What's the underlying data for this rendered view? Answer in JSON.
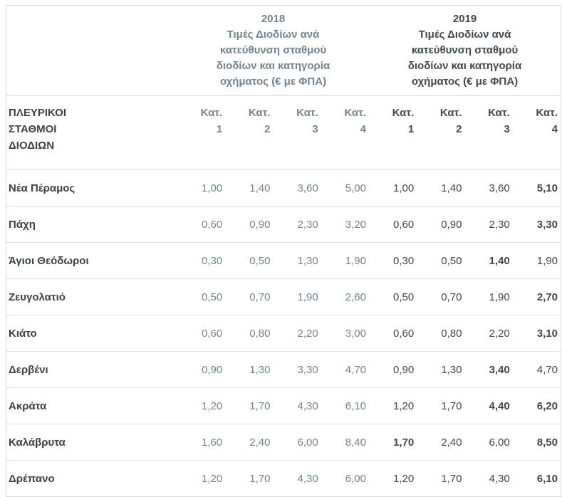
{
  "table": {
    "corner_label": "ΠΛΕΥΡΙΚΟΙ\nΣΤΑΘΜΟΙ\nΔΙΟΔΙΩΝ",
    "groups": [
      {
        "year": "2018",
        "subtitle": "Τιμές Διοδίων ανά\nκατεύθυνση σταθμού\nδιοδίων και κατηγορία\nοχήματος (€ με ΦΠΑ)"
      },
      {
        "year": "2019",
        "subtitle": "Τιμές Διοδίων ανά\nκατεύθυνση σταθμού\nδιοδίων και κατηγορία\nοχήματος (€ με ΦΠΑ)"
      }
    ],
    "category_columns": [
      {
        "year": "2018",
        "label": "Κατ.",
        "number": "1"
      },
      {
        "year": "2018",
        "label": "Κατ.",
        "number": "2"
      },
      {
        "year": "2018",
        "label": "Κατ.",
        "number": "3"
      },
      {
        "year": "2018",
        "label": "Κατ.",
        "number": "4"
      },
      {
        "year": "2019",
        "label": "Κατ.",
        "number": "1"
      },
      {
        "year": "2019",
        "label": "Κατ.",
        "number": "2"
      },
      {
        "year": "2019",
        "label": "Κατ.",
        "number": "3"
      },
      {
        "year": "2019",
        "label": "Κατ.",
        "number": "4"
      }
    ],
    "rows": [
      {
        "station": "Νέα Πέραμος",
        "values": [
          "1,00",
          "1,40",
          "3,60",
          "5,00",
          "1,00",
          "1,40",
          "3,60",
          "5,10"
        ],
        "bold": [
          7
        ]
      },
      {
        "station": "Πάχη",
        "values": [
          "0,60",
          "0,90",
          "2,30",
          "3,20",
          "0,60",
          "0,90",
          "2,30",
          "3,30"
        ],
        "bold": [
          7
        ]
      },
      {
        "station": "Άγιοι Θεόδωροι",
        "values": [
          "0,30",
          "0,50",
          "1,30",
          "1,90",
          "0,30",
          "0,50",
          "1,40",
          "1,90"
        ],
        "bold": [
          6
        ]
      },
      {
        "station": "Ζευγολατιό",
        "values": [
          "0,50",
          "0,70",
          "1,90",
          "2,60",
          "0,50",
          "0,70",
          "1,90",
          "2,70"
        ],
        "bold": [
          7
        ]
      },
      {
        "station": "Κιάτο",
        "values": [
          "0,60",
          "0,80",
          "2,20",
          "3,00",
          "0,60",
          "0,80",
          "2,20",
          "3,10"
        ],
        "bold": [
          7
        ]
      },
      {
        "station": "Δερβένι",
        "values": [
          "0,90",
          "1,30",
          "3,30",
          "4,70",
          "0,90",
          "1,30",
          "3,40",
          "4,70"
        ],
        "bold": [
          6
        ]
      },
      {
        "station": "Ακράτα",
        "values": [
          "1,20",
          "1,70",
          "4,30",
          "6,10",
          "1,20",
          "1,70",
          "4,40",
          "6,20"
        ],
        "bold": [
          6,
          7
        ]
      },
      {
        "station": "Καλάβρυτα",
        "values": [
          "1,60",
          "2,40",
          "6,00",
          "8,40",
          "1,70",
          "2,40",
          "6,00",
          "8,50"
        ],
        "bold": [
          4,
          7
        ]
      },
      {
        "station": "Δρέπανο",
        "values": [
          "1,20",
          "1,70",
          "4,30",
          "6,00",
          "1,20",
          "1,70",
          "4,30",
          "6,10"
        ],
        "bold": [
          7
        ]
      }
    ]
  },
  "colors": {
    "year_2018_text": "#73848f",
    "year_2019_text": "#41494f",
    "station_label_text": "#3b4247",
    "border": "#dcdcdc",
    "background": "#ffffff"
  },
  "chart_data": {
    "type": "table",
    "title": "Τιμές Διοδίων ανά κατεύθυνση σταθμού διοδίων και κατηγορία οχήματος (€ με ΦΠΑ)",
    "row_header": "ΠΛΕΥΡΙΚΟΙ ΣΤΑΘΜΟΙ ΔΙΟΔΙΩΝ",
    "column_groups": [
      "2018",
      "2019"
    ],
    "columns": [
      "2018 Κατ.1",
      "2018 Κατ.2",
      "2018 Κατ.3",
      "2018 Κατ.4",
      "2019 Κατ.1",
      "2019 Κατ.2",
      "2019 Κατ.3",
      "2019 Κατ.4"
    ],
    "categories": [
      "Νέα Πέραμος",
      "Πάχη",
      "Άγιοι Θεόδωροι",
      "Ζευγολατιό",
      "Κιάτο",
      "Δερβένι",
      "Ακράτα",
      "Καλάβρυτα",
      "Δρέπανο"
    ],
    "series": [
      {
        "name": "2018 Κατ.1",
        "values": [
          1.0,
          0.6,
          0.3,
          0.5,
          0.6,
          0.9,
          1.2,
          1.6,
          1.2
        ]
      },
      {
        "name": "2018 Κατ.2",
        "values": [
          1.4,
          0.9,
          0.5,
          0.7,
          0.8,
          1.3,
          1.7,
          2.4,
          1.7
        ]
      },
      {
        "name": "2018 Κατ.3",
        "values": [
          3.6,
          2.3,
          1.3,
          1.9,
          2.2,
          3.3,
          4.3,
          6.0,
          4.3
        ]
      },
      {
        "name": "2018 Κατ.4",
        "values": [
          5.0,
          3.2,
          1.9,
          2.6,
          3.0,
          4.7,
          6.1,
          8.4,
          6.0
        ]
      },
      {
        "name": "2019 Κατ.1",
        "values": [
          1.0,
          0.6,
          0.3,
          0.5,
          0.6,
          0.9,
          1.2,
          1.7,
          1.2
        ]
      },
      {
        "name": "2019 Κατ.2",
        "values": [
          1.4,
          0.9,
          0.5,
          0.7,
          0.8,
          1.3,
          1.7,
          2.4,
          1.7
        ]
      },
      {
        "name": "2019 Κατ.3",
        "values": [
          3.6,
          2.3,
          1.4,
          1.9,
          2.2,
          3.4,
          4.4,
          6.0,
          4.3
        ]
      },
      {
        "name": "2019 Κατ.4",
        "values": [
          5.1,
          3.3,
          1.9,
          2.7,
          3.1,
          4.7,
          6.2,
          8.5,
          6.1
        ]
      }
    ]
  }
}
